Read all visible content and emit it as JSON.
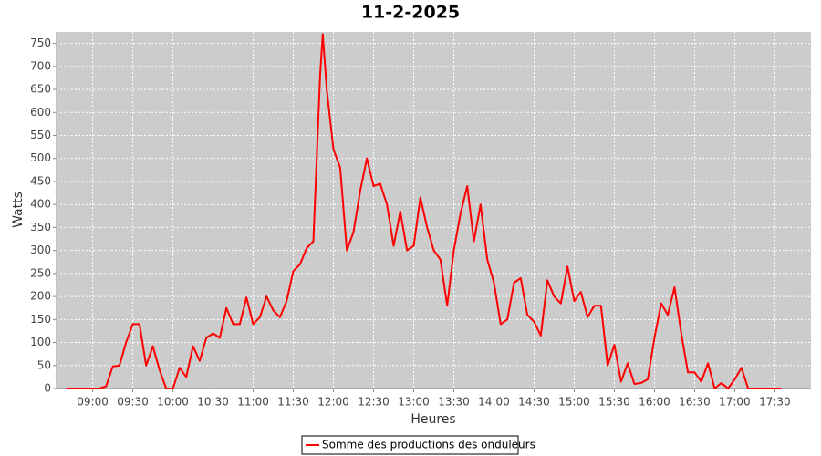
{
  "chart_data": {
    "type": "line",
    "title": "11-2-2025",
    "xlabel": "Heures",
    "ylabel": "Watts",
    "x": [
      "08:40",
      "08:45",
      "08:50",
      "08:55",
      "09:00",
      "09:05",
      "09:10",
      "09:15",
      "09:20",
      "09:25",
      "09:30",
      "09:35",
      "09:40",
      "09:45",
      "09:50",
      "09:55",
      "10:00",
      "10:05",
      "10:10",
      "10:15",
      "10:20",
      "10:25",
      "10:30",
      "10:35",
      "10:40",
      "10:45",
      "10:50",
      "10:55",
      "11:00",
      "11:05",
      "11:10",
      "11:15",
      "11:20",
      "11:25",
      "11:30",
      "11:35",
      "11:40",
      "11:45",
      "11:50",
      "11:52",
      "11:55",
      "12:00",
      "12:05",
      "12:10",
      "12:15",
      "12:20",
      "12:25",
      "12:30",
      "12:35",
      "12:40",
      "12:45",
      "12:50",
      "12:55",
      "13:00",
      "13:05",
      "13:10",
      "13:15",
      "13:20",
      "13:25",
      "13:30",
      "13:35",
      "13:40",
      "13:45",
      "13:50",
      "13:55",
      "14:00",
      "14:05",
      "14:10",
      "14:15",
      "14:20",
      "14:25",
      "14:30",
      "14:35",
      "14:40",
      "14:45",
      "14:50",
      "14:55",
      "15:00",
      "15:05",
      "15:10",
      "15:15",
      "15:20",
      "15:25",
      "15:30",
      "15:35",
      "15:40",
      "15:45",
      "15:50",
      "15:55",
      "16:00",
      "16:05",
      "16:10",
      "16:15",
      "16:20",
      "16:25",
      "16:30",
      "16:35",
      "16:40",
      "16:45",
      "16:50",
      "16:55",
      "17:00",
      "17:05",
      "17:10",
      "17:15",
      "17:20",
      "17:25",
      "17:30",
      "17:35"
    ],
    "series": [
      {
        "name": "Somme des productions des onduleurs",
        "color": "#ff0000",
        "values": [
          0,
          0,
          0,
          0,
          0,
          0,
          5,
          48,
          50,
          100,
          140,
          140,
          50,
          92,
          40,
          0,
          0,
          45,
          25,
          92,
          60,
          110,
          120,
          110,
          175,
          140,
          140,
          198,
          140,
          155,
          200,
          170,
          155,
          190,
          255,
          270,
          305,
          320,
          680,
          770,
          650,
          520,
          480,
          300,
          340,
          430,
          500,
          440,
          445,
          400,
          310,
          385,
          300,
          310,
          415,
          350,
          300,
          280,
          180,
          300,
          380,
          440,
          320,
          400,
          280,
          230,
          140,
          150,
          230,
          240,
          160,
          145,
          115,
          235,
          200,
          185,
          265,
          190,
          210,
          155,
          180,
          180,
          50,
          95,
          15,
          55,
          10,
          12,
          20,
          110,
          185,
          160,
          220,
          120,
          35,
          35,
          15,
          55,
          0,
          12,
          0,
          20,
          45,
          0,
          0,
          0,
          0,
          0,
          0
        ]
      }
    ],
    "xlim": [
      "08:33",
      "17:57"
    ],
    "xticks": [
      "09:00",
      "09:30",
      "10:00",
      "10:30",
      "11:00",
      "11:30",
      "12:00",
      "12:30",
      "13:00",
      "13:30",
      "14:00",
      "14:30",
      "15:00",
      "15:30",
      "16:00",
      "16:30",
      "17:00",
      "17:30"
    ],
    "ylim": [
      0,
      775
    ],
    "yticks": [
      0,
      50,
      100,
      150,
      200,
      250,
      300,
      350,
      400,
      450,
      500,
      550,
      600,
      650,
      700,
      750
    ],
    "grid": true
  }
}
